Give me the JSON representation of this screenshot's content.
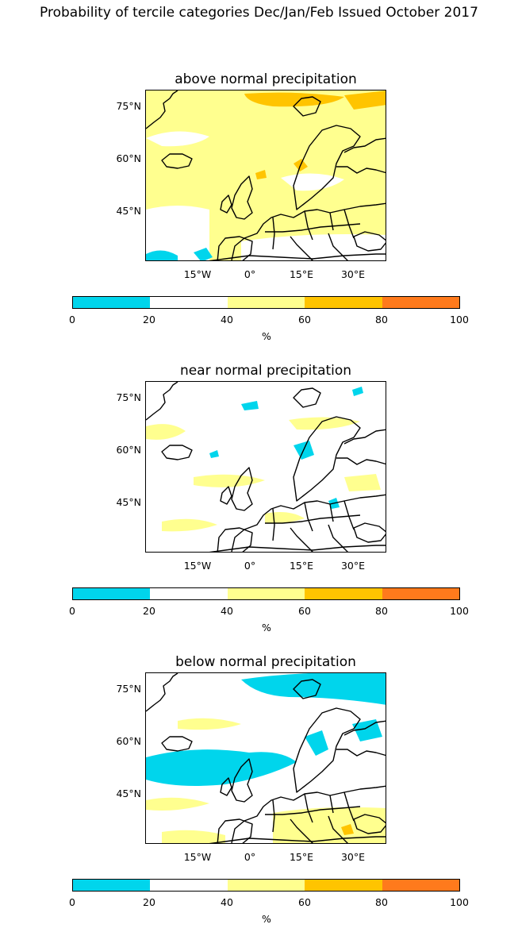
{
  "figure": {
    "title": "Probability of tercile categories Dec/Jan/Feb Issued October 2017"
  },
  "panels": [
    {
      "title": "above normal precipitation",
      "dominant": "above"
    },
    {
      "title": "near normal precipitation",
      "dominant": "near"
    },
    {
      "title": "below normal precipitation",
      "dominant": "below"
    }
  ],
  "map_axes": {
    "lat_labels": [
      "75°N",
      "60°N",
      "45°N"
    ],
    "lon_labels": [
      "15°W",
      "0°",
      "15°E",
      "30°E"
    ]
  },
  "colorbar": {
    "ticks": [
      "0",
      "20",
      "40",
      "60",
      "80",
      "100"
    ],
    "unit": "%",
    "colors": [
      "#00d5ec",
      "#ffffff",
      "#ffff8f",
      "#ffc400",
      "#ff7a1c"
    ]
  }
}
